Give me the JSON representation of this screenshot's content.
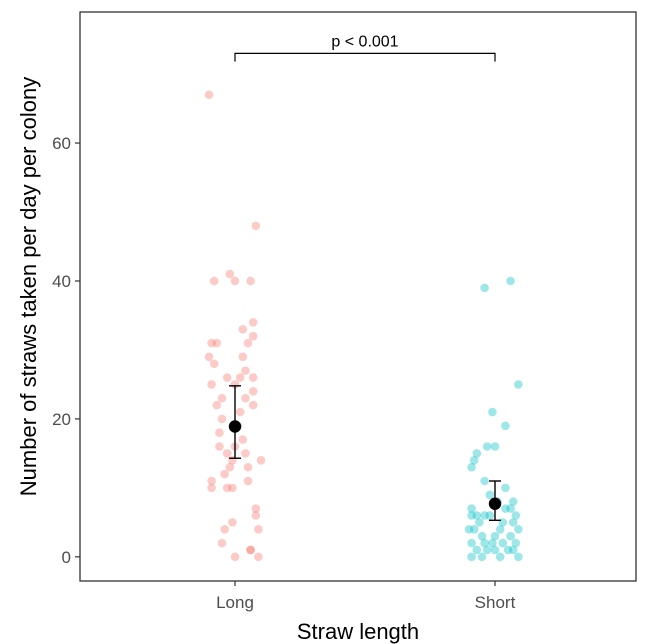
{
  "chart_data": {
    "type": "scatter",
    "title": "",
    "xlabel": "Straw length",
    "ylabel": "Number of straws taken per day per colony",
    "categories": [
      "Long",
      "Short"
    ],
    "ylim": [
      -3.5,
      79
    ],
    "yticks": [
      0,
      20,
      40,
      60
    ],
    "grid": false,
    "legend": "none",
    "colors": {
      "Long": "#f8766d",
      "Short": "#00bfc4",
      "summary": "#000000"
    },
    "series": [
      {
        "category": "Long",
        "points": [
          [
            -0.1,
            67
          ],
          [
            0.08,
            48
          ],
          [
            -0.02,
            41
          ],
          [
            -0.08,
            40
          ],
          [
            0.0,
            40
          ],
          [
            0.06,
            40
          ],
          [
            0.07,
            34
          ],
          [
            0.03,
            33
          ],
          [
            0.07,
            32
          ],
          [
            0.05,
            31
          ],
          [
            -0.09,
            31
          ],
          [
            -0.07,
            31
          ],
          [
            -0.1,
            29
          ],
          [
            0.03,
            29
          ],
          [
            -0.08,
            28
          ],
          [
            0.04,
            27
          ],
          [
            0.07,
            26
          ],
          [
            -0.03,
            26
          ],
          [
            -0.09,
            25
          ],
          [
            0.0,
            25
          ],
          [
            0.02,
            26
          ],
          [
            0.07,
            24
          ],
          [
            -0.05,
            23
          ],
          [
            0.04,
            23
          ],
          [
            -0.07,
            22
          ],
          [
            0.07,
            22
          ],
          [
            0.02,
            21
          ],
          [
            -0.05,
            20
          ],
          [
            0.01,
            19
          ],
          [
            -0.06,
            18
          ],
          [
            0.03,
            17
          ],
          [
            -0.06,
            16
          ],
          [
            0.0,
            16
          ],
          [
            -0.03,
            15
          ],
          [
            0.04,
            15
          ],
          [
            -0.01,
            14
          ],
          [
            0.1,
            14
          ],
          [
            -0.02,
            13
          ],
          [
            0.05,
            13
          ],
          [
            -0.04,
            12
          ],
          [
            -0.09,
            11
          ],
          [
            0.05,
            11
          ],
          [
            -0.09,
            10
          ],
          [
            -0.03,
            10
          ],
          [
            -0.01,
            10
          ],
          [
            0.08,
            7
          ],
          [
            0.08,
            6
          ],
          [
            -0.01,
            5
          ],
          [
            -0.04,
            4
          ],
          [
            0.09,
            4
          ],
          [
            -0.05,
            2
          ],
          [
            0.06,
            1
          ],
          [
            0.06,
            1
          ],
          [
            0.0,
            0
          ],
          [
            0.09,
            0
          ]
        ],
        "mean": 18.9,
        "ci": [
          14.3,
          24.8
        ]
      },
      {
        "category": "Short",
        "points": [
          [
            0.06,
            40
          ],
          [
            -0.04,
            39
          ],
          [
            -0.01,
            21
          ],
          [
            0.09,
            25
          ],
          [
            0.04,
            19
          ],
          [
            -0.03,
            16
          ],
          [
            0.0,
            16
          ],
          [
            -0.07,
            15
          ],
          [
            -0.08,
            14
          ],
          [
            -0.09,
            13
          ],
          [
            -0.04,
            11
          ],
          [
            0.04,
            10
          ],
          [
            -0.02,
            9
          ],
          [
            0.07,
            8
          ],
          [
            0.01,
            8
          ],
          [
            -0.09,
            7
          ],
          [
            0.04,
            7
          ],
          [
            0.06,
            7
          ],
          [
            -0.09,
            6
          ],
          [
            -0.07,
            6
          ],
          [
            -0.04,
            6
          ],
          [
            -0.02,
            6
          ],
          [
            0.08,
            6
          ],
          [
            -0.06,
            5
          ],
          [
            0.03,
            5
          ],
          [
            0.07,
            5
          ],
          [
            -0.1,
            4
          ],
          [
            -0.08,
            4
          ],
          [
            0.02,
            4
          ],
          [
            0.09,
            4
          ],
          [
            -0.05,
            3
          ],
          [
            0.0,
            3
          ],
          [
            0.06,
            3
          ],
          [
            -0.09,
            2
          ],
          [
            -0.04,
            2
          ],
          [
            -0.01,
            2
          ],
          [
            0.03,
            2
          ],
          [
            0.08,
            2
          ],
          [
            -0.07,
            1
          ],
          [
            -0.03,
            1
          ],
          [
            0.0,
            1
          ],
          [
            0.05,
            1
          ],
          [
            0.07,
            1
          ],
          [
            -0.09,
            0
          ],
          [
            -0.05,
            0
          ],
          [
            0.02,
            0
          ],
          [
            0.09,
            0
          ]
        ],
        "mean": 7.7,
        "ci": [
          5.3,
          11.0
        ]
      }
    ],
    "annotation": {
      "text": "p < 0.001",
      "bracket_y": 73,
      "bracket_tick_depth": 1.2
    }
  }
}
